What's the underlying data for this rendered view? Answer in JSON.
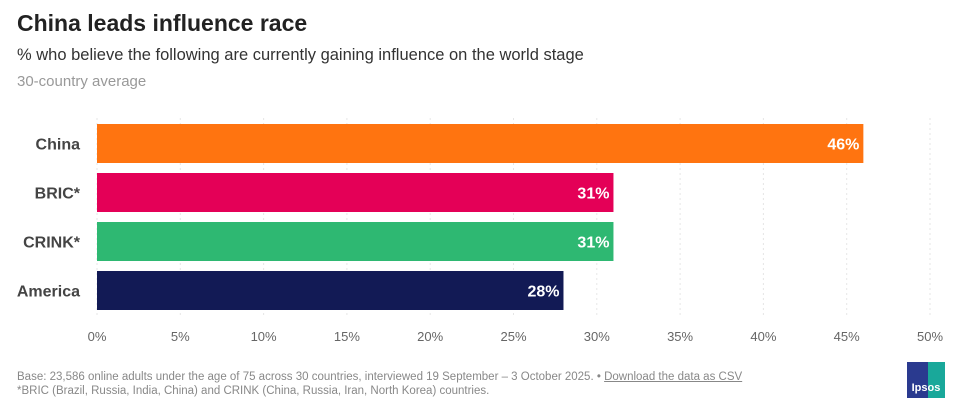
{
  "chart_data": {
    "type": "bar",
    "orientation": "horizontal",
    "title": "China leads influence race",
    "subtitle": "% who believe the following are currently gaining influence on the world stage",
    "note": "30-country average",
    "categories": [
      "China",
      "BRIC*",
      "CRINK*",
      "America"
    ],
    "values": [
      46,
      31,
      31,
      28
    ],
    "value_labels": [
      "46%",
      "31%",
      "31%",
      "28%"
    ],
    "colors": [
      "#ff7410",
      "#e40057",
      "#2eb872",
      "#121a55"
    ],
    "xlim": [
      0,
      50
    ],
    "xticks": [
      "0%",
      "5%",
      "10%",
      "15%",
      "20%",
      "25%",
      "30%",
      "35%",
      "40%",
      "45%",
      "50%"
    ],
    "grid": true
  },
  "footer": {
    "base": "Base: 23,586 online adults under the age of 75 across 30 countries, interviewed 19 September – 3 October 2025. •",
    "link": "Download the data as CSV",
    "definition": "*BRIC (Brazil, Russia, India, China) and CRINK (China, Russia, Iran, North Korea) countries."
  },
  "logo": "Ipsos"
}
